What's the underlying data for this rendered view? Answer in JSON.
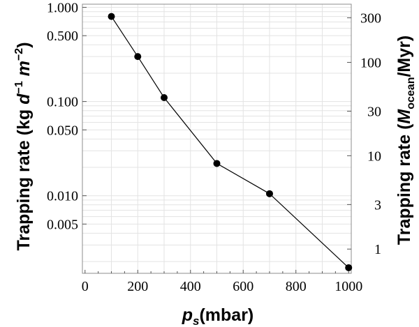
{
  "chart_data": {
    "type": "line",
    "x": [
      100,
      200,
      300,
      500,
      700,
      1000
    ],
    "y": [
      0.8,
      0.3,
      0.11,
      0.022,
      0.0105,
      0.00172
    ],
    "xlim": [
      -10,
      1010
    ],
    "ylim_left": [
      0.0015,
      1.08
    ],
    "ylim_right": [
      0.55,
      420
    ],
    "yscale": "log",
    "grid": true,
    "marker": "filled-circle",
    "line_color": "#000000",
    "grid_color": "#e3e3e3",
    "x_ticks": [
      0,
      200,
      400,
      600,
      800,
      1000
    ],
    "x_tick_labels": [
      "0",
      "200",
      "400",
      "600",
      "800",
      "1000"
    ],
    "y_left_ticks": [
      1.0,
      0.5,
      0.1,
      0.05,
      0.01,
      0.005
    ],
    "y_left_tick_labels": [
      "1.000",
      "0.500",
      "0.100",
      "0.050",
      "0.010",
      "0.005"
    ],
    "y_right_ticks": [
      300,
      100,
      30,
      10,
      3,
      1
    ],
    "y_right_tick_labels": [
      "300",
      "100",
      "30",
      "10",
      "3",
      "1"
    ],
    "xlabel": {
      "sym": "p",
      "sub": "s",
      "rest": "(mbar)"
    },
    "ylabel_left": {
      "main": "Trapping rate (kg ",
      "d": "d",
      "e1": "−1",
      "m": " m",
      "e2": "−2",
      "close": ")"
    },
    "ylabel_right": {
      "main": "Trapping rate (",
      "M": "M",
      "sub": "ocean",
      "rest": "/Myr)"
    }
  }
}
